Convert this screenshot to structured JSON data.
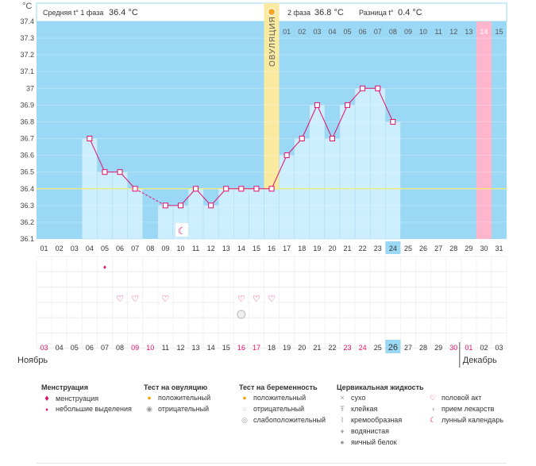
{
  "chart_data": {
    "type": "bar",
    "y_unit": "°C",
    "ylim": [
      36.1,
      37.4
    ],
    "y_ticks": [
      "36.1",
      "36.2",
      "36.3",
      "36.4",
      "36.5",
      "36.6",
      "36.7",
      "36.8",
      "36.9",
      "37",
      "37.1",
      "37.2",
      "37.3",
      "37.4"
    ],
    "phase1_label": "Средняя t° 1 фаза",
    "phase1_avg": "36.4 °C",
    "phase2_label": "2 фаза",
    "phase2_avg": "36.8 °C",
    "diff_label": "Разница t°",
    "diff_value": "0.4 °C",
    "ovulation_label": "ОВУЛЯЦИЯ",
    "coverline": 36.4,
    "cycle_days": [
      "01",
      "02",
      "03",
      "04",
      "05",
      "06",
      "07",
      "08",
      "09",
      "10",
      "11",
      "12",
      "13",
      "14",
      "15",
      "16",
      "17",
      "18",
      "19",
      "20",
      "21",
      "22",
      "23",
      "24",
      "25",
      "26",
      "27",
      "28",
      "29",
      "30",
      "31"
    ],
    "phase2_days": [
      "01",
      "02",
      "03",
      "04",
      "05",
      "06",
      "07",
      "08",
      "09",
      "10",
      "11",
      "12",
      "13",
      "14",
      "15"
    ],
    "temperatures": [
      null,
      null,
      null,
      36.7,
      36.5,
      36.5,
      36.4,
      null,
      36.3,
      36.3,
      36.4,
      36.3,
      36.4,
      36.4,
      36.4,
      36.4,
      36.6,
      36.7,
      36.9,
      36.7,
      36.9,
      37.0,
      37.0,
      36.8,
      null,
      null,
      null,
      null,
      null,
      null,
      null
    ],
    "highlight_day": "24",
    "calendar_dates": [
      "03",
      "04",
      "05",
      "06",
      "07",
      "08",
      "09",
      "10",
      "11",
      "12",
      "13",
      "14",
      "15",
      "16",
      "17",
      "18",
      "19",
      "20",
      "21",
      "22",
      "23",
      "24",
      "25",
      "26",
      "27",
      "28",
      "29",
      "30",
      "01",
      "02",
      "03"
    ],
    "weekend_dates_index": [
      0,
      6,
      7,
      13,
      14,
      20,
      21,
      27,
      28
    ],
    "today_index": 23,
    "month_left": "Ноябрь",
    "month_right": "Декабрь"
  },
  "legend": {
    "menstruation": {
      "title": "Менструация",
      "items": [
        "менструация",
        "небольшие выделения"
      ]
    },
    "ovulation_test": {
      "title": "Тест на овуляцию",
      "items": [
        "положительный",
        "отрицательный"
      ]
    },
    "pregnancy_test": {
      "title": "Тест на беременность",
      "items": [
        "положительный",
        "отрицательный",
        "слабоположительный"
      ]
    },
    "cervical_fluid": {
      "title": "Цервикальная жидкость",
      "items": [
        "сухо",
        "клейкая",
        "кремообразная",
        "водянистая",
        "яичный белок"
      ]
    },
    "other": {
      "items": [
        "половой акт",
        "прием лекарств",
        "лунный календарь"
      ]
    }
  },
  "colors": {
    "sky": "#9bd8f5",
    "bar": "#cdeefd",
    "line": "#e0106a",
    "ovulation": "#f9eaa0",
    "pink": "#ffb6cc",
    "weekend": "#e0106a",
    "header_border": "#9bd8f5"
  }
}
